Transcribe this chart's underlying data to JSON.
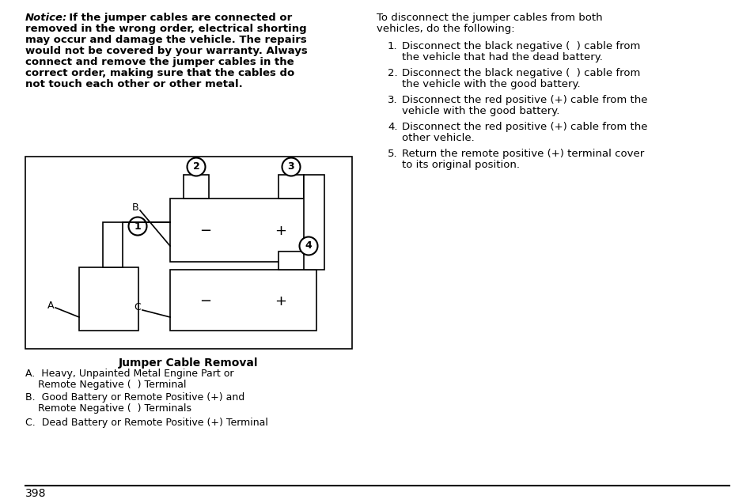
{
  "bg_color": "#ffffff",
  "notice_label": "Notice:",
  "notice_rest_line1": "  If the jumper cables are connected or",
  "notice_rest_lines": [
    "removed in the wrong order, electrical shorting",
    "may occur and damage the vehicle. The repairs",
    "would not be covered by your warranty. Always",
    "connect and remove the jumper cables in the",
    "correct order, making sure that the cables do",
    "not touch each other or other metal."
  ],
  "right_intro_line1": "To disconnect the jumper cables from both",
  "right_intro_line2": "vehicles, do the following:",
  "right_items": [
    [
      "Disconnect the black negative (  ) cable from",
      "the vehicle that had the dead battery."
    ],
    [
      "Disconnect the black negative (  ) cable from",
      "the vehicle with the good battery."
    ],
    [
      "Disconnect the red positive (+) cable from the",
      "vehicle with the good battery."
    ],
    [
      "Disconnect the red positive (+) cable from the",
      "other vehicle."
    ],
    [
      "Return the remote positive (+) terminal cover",
      "to its original position."
    ]
  ],
  "diagram_caption": "Jumper Cable Removal",
  "legend_A_line1": "A.  Heavy, Unpainted Metal Engine Part or",
  "legend_A_line2": "    Remote Negative (  ) Terminal",
  "legend_B_line1": "B.  Good Battery or Remote Positive (+) and",
  "legend_B_line2": "    Remote Negative (  ) Terminals",
  "legend_C": "C.  Dead Battery or Remote Positive (+) Terminal",
  "page_number": "398",
  "fs": 9.5,
  "fs_small": 9.0,
  "lh": 14.0
}
